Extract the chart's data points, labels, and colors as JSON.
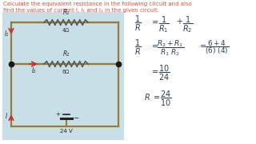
{
  "outer_bg": "#ffffff",
  "title_line1": "Calculate the equivalent resistance in the following circuit and also",
  "title_line2": "find the values of current I, I₁ and I₂ in the given circuit.",
  "title_color": "#d0533a",
  "circuit_bg": "#c8dfe8",
  "circuit_border": "#9B7B3A",
  "R1_label": "R₁",
  "R1_value": "4Ω",
  "R2_label": "R₂",
  "R2_value": "6Ω",
  "voltage": "24 V",
  "formula_color": "#2c3e50"
}
